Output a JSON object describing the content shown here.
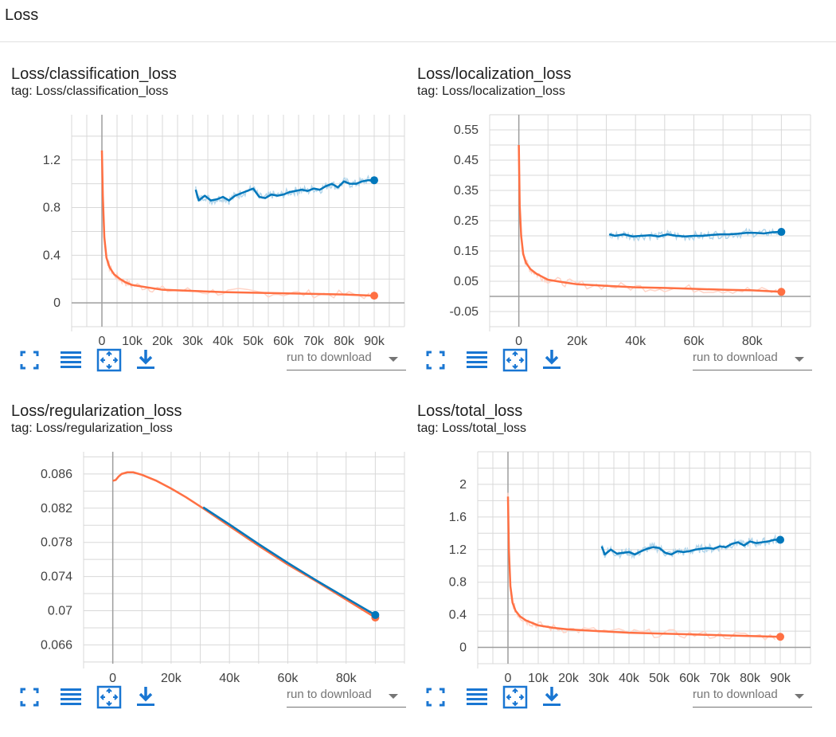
{
  "section": {
    "title": "Loss"
  },
  "colors": {
    "train": "#ff7043",
    "eval": "#0077bb",
    "grid": "#d8d8d8",
    "axis": "#9e9e9e",
    "icon": "#1976d2"
  },
  "toolbar": {
    "icons": [
      "fullscreen-icon",
      "list-icon",
      "fit-domain-icon",
      "download-icon"
    ],
    "run_select_label": "run to download"
  },
  "cards": [
    {
      "title": "Loss/classification_loss",
      "tag": "tag: Loss/classification_loss",
      "chart_data": {
        "type": "line",
        "x_ticks": [
          0,
          10000,
          20000,
          30000,
          40000,
          50000,
          60000,
          70000,
          80000,
          90000
        ],
        "x_tick_labels": [
          "0",
          "10k",
          "20k",
          "30k",
          "40k",
          "50k",
          "60k",
          "70k",
          "80k",
          "90k"
        ],
        "y_ticks": [
          0,
          0.4,
          0.8,
          1.2
        ],
        "y_tick_labels": [
          "0",
          "0.4",
          "0.8",
          "1.2"
        ],
        "xlim": [
          -10000,
          100000
        ],
        "ylim": [
          -0.2,
          1.58
        ],
        "grid": true,
        "series": [
          {
            "role": "train",
            "x": [
              0,
              300,
              800,
              1500,
              2500,
              4000,
              6000,
              8000,
              10000,
              15000,
              20000,
              30000,
              40000,
              50000,
              60000,
              70000,
              80000,
              90000
            ],
            "values": [
              1.28,
              0.9,
              0.55,
              0.38,
              0.3,
              0.24,
              0.2,
              0.17,
              0.15,
              0.13,
              0.11,
              0.1,
              0.09,
              0.085,
              0.08,
              0.075,
              0.07,
              0.06
            ]
          },
          {
            "role": "eval",
            "x": [
              31000,
              32000,
              34000,
              36000,
              38000,
              40000,
              42000,
              44000,
              46000,
              48000,
              50000,
              52000,
              54000,
              56000,
              58000,
              60000,
              62000,
              64000,
              66000,
              68000,
              70000,
              72000,
              74000,
              76000,
              78000,
              80000,
              82000,
              84000,
              86000,
              88000,
              90000
            ],
            "values": [
              0.95,
              0.86,
              0.9,
              0.86,
              0.87,
              0.89,
              0.86,
              0.9,
              0.92,
              0.94,
              0.96,
              0.89,
              0.88,
              0.91,
              0.9,
              0.91,
              0.93,
              0.94,
              0.95,
              0.94,
              0.96,
              0.95,
              0.98,
              1.0,
              0.97,
              1.02,
              1.0,
              1.0,
              1.02,
              1.03,
              1.03
            ]
          }
        ]
      }
    },
    {
      "title": "Loss/localization_loss",
      "tag": "tag: Loss/localization_loss",
      "chart_data": {
        "type": "line",
        "x_ticks": [
          0,
          20000,
          40000,
          60000,
          80000
        ],
        "x_tick_labels": [
          "0",
          "20k",
          "40k",
          "60k",
          "80k"
        ],
        "y_ticks": [
          -0.05,
          0.05,
          0.15,
          0.25,
          0.35,
          0.45,
          0.55
        ],
        "y_tick_labels": [
          "-0.05",
          "0.05",
          "0.15",
          "0.25",
          "0.35",
          "0.45",
          "0.55"
        ],
        "xlim": [
          -10000,
          100000
        ],
        "ylim": [
          -0.1,
          0.6
        ],
        "grid": true,
        "series": [
          {
            "role": "train",
            "x": [
              0,
              300,
              800,
              1500,
              2500,
              4000,
              6000,
              8000,
              10000,
              15000,
              20000,
              30000,
              40000,
              50000,
              60000,
              70000,
              80000,
              90000
            ],
            "values": [
              0.5,
              0.3,
              0.2,
              0.14,
              0.11,
              0.09,
              0.075,
              0.065,
              0.055,
              0.047,
              0.04,
              0.035,
              0.03,
              0.028,
              0.025,
              0.022,
              0.02,
              0.015
            ]
          },
          {
            "role": "eval",
            "x": [
              31000,
              33000,
              36000,
              39000,
              42000,
              45000,
              48000,
              51000,
              54000,
              57000,
              60000,
              63000,
              66000,
              69000,
              72000,
              75000,
              78000,
              81000,
              84000,
              87000,
              90000
            ],
            "values": [
              0.205,
              0.2,
              0.205,
              0.198,
              0.2,
              0.202,
              0.198,
              0.205,
              0.2,
              0.198,
              0.2,
              0.2,
              0.203,
              0.205,
              0.205,
              0.207,
              0.21,
              0.21,
              0.208,
              0.212,
              0.213
            ]
          }
        ]
      }
    },
    {
      "title": "Loss/regularization_loss",
      "tag": "tag: Loss/regularization_loss",
      "chart_data": {
        "type": "line",
        "x_ticks": [
          0,
          20000,
          40000,
          60000,
          80000
        ],
        "x_tick_labels": [
          "0",
          "20k",
          "40k",
          "60k",
          "80k"
        ],
        "y_ticks": [
          0.066,
          0.07,
          0.074,
          0.078,
          0.082,
          0.086
        ],
        "y_tick_labels": [
          "0.066",
          "0.07",
          "0.074",
          "0.078",
          "0.082",
          "0.086"
        ],
        "xlim": [
          -10000,
          100000
        ],
        "ylim": [
          0.0638,
          0.0886
        ],
        "grid": true,
        "series": [
          {
            "role": "train",
            "x": [
              0,
              1000,
              2000,
              3000,
              5000,
              7000,
              10000,
              15000,
              20000,
              25000,
              30000,
              40000,
              50000,
              60000,
              70000,
              80000,
              90000
            ],
            "values": [
              0.0852,
              0.0853,
              0.0857,
              0.086,
              0.0862,
              0.0862,
              0.0859,
              0.0852,
              0.0843,
              0.0833,
              0.0822,
              0.0799,
              0.0776,
              0.0754,
              0.0734,
              0.0713,
              0.0692
            ]
          },
          {
            "role": "eval",
            "x": [
              31000,
              40000,
              50000,
              60000,
              70000,
              80000,
              90000
            ],
            "values": [
              0.0821,
              0.0801,
              0.0778,
              0.0756,
              0.0735,
              0.0715,
              0.0695
            ]
          }
        ]
      }
    },
    {
      "title": "Loss/total_loss",
      "tag": "tag: Loss/total_loss",
      "chart_data": {
        "type": "line",
        "x_ticks": [
          0,
          10000,
          20000,
          30000,
          40000,
          50000,
          60000,
          70000,
          80000,
          90000
        ],
        "x_tick_labels": [
          "0",
          "10k",
          "20k",
          "30k",
          "40k",
          "50k",
          "60k",
          "70k",
          "80k",
          "90k"
        ],
        "y_ticks": [
          0,
          0.4,
          0.8,
          1.2,
          1.6,
          2
        ],
        "y_tick_labels": [
          "0",
          "0.4",
          "0.8",
          "1.2",
          "1.6",
          "2"
        ],
        "xlim": [
          -10000,
          100000
        ],
        "ylim": [
          -0.2,
          2.4
        ],
        "grid": true,
        "series": [
          {
            "role": "train",
            "x": [
              0,
              300,
              800,
              1500,
              2500,
              4000,
              6000,
              8000,
              10000,
              15000,
              20000,
              30000,
              40000,
              50000,
              60000,
              70000,
              80000,
              90000
            ],
            "values": [
              1.85,
              1.2,
              0.75,
              0.55,
              0.45,
              0.38,
              0.33,
              0.3,
              0.27,
              0.24,
              0.22,
              0.2,
              0.18,
              0.17,
              0.16,
              0.15,
              0.14,
              0.13
            ]
          },
          {
            "role": "eval",
            "x": [
              31000,
              32000,
              34000,
              36000,
              38000,
              40000,
              42000,
              44000,
              46000,
              48000,
              50000,
              52000,
              54000,
              56000,
              58000,
              60000,
              62000,
              64000,
              66000,
              68000,
              70000,
              72000,
              74000,
              76000,
              78000,
              80000,
              82000,
              84000,
              86000,
              88000,
              90000
            ],
            "values": [
              1.24,
              1.14,
              1.2,
              1.15,
              1.16,
              1.17,
              1.14,
              1.18,
              1.21,
              1.23,
              1.22,
              1.16,
              1.14,
              1.18,
              1.17,
              1.18,
              1.2,
              1.21,
              1.22,
              1.21,
              1.24,
              1.23,
              1.27,
              1.29,
              1.25,
              1.3,
              1.28,
              1.29,
              1.3,
              1.32,
              1.32
            ]
          }
        ]
      }
    }
  ]
}
